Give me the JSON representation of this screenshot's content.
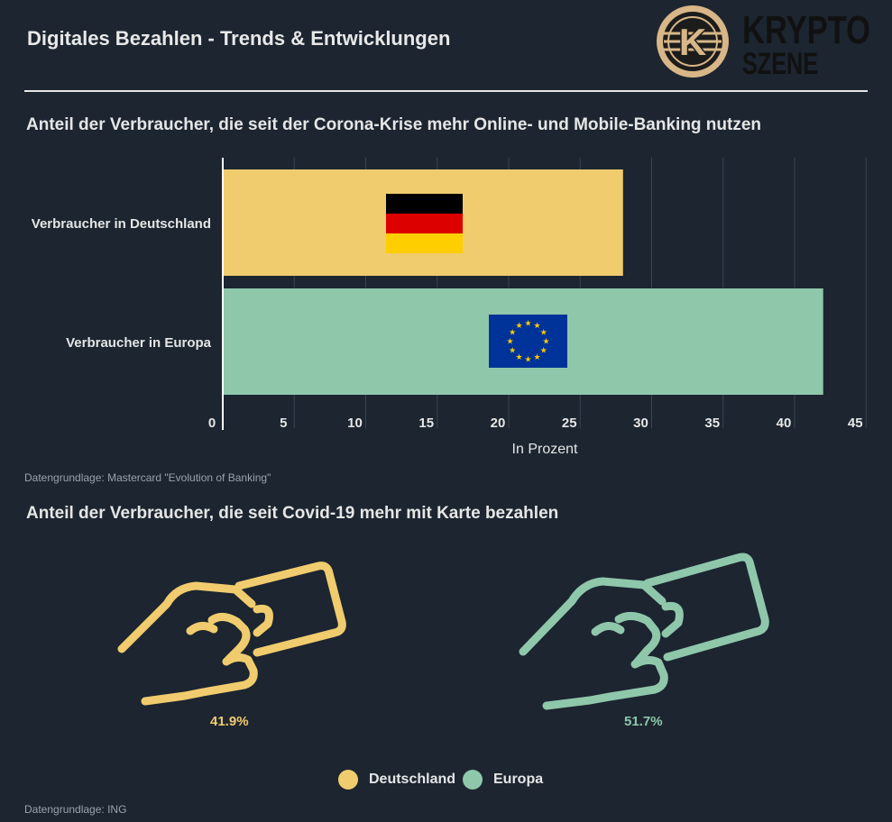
{
  "header": {
    "title": "Digitales Bezahlen - Trends & Entwicklungen",
    "logo_text_top": "KRYPTO",
    "logo_text_bottom": "SZENE",
    "logo_letter": "K"
  },
  "section1": {
    "subtitle": "Anteil der Verbraucher, die seit der Corona-Krise mehr Online- und Mobile-Banking nutzen",
    "source": "Datengrundlage: Mastercard \"Evolution of Banking\""
  },
  "section2": {
    "subtitle": "Anteil der Verbraucher, die seit Covid-19 mehr mit Karte bezahlen",
    "source": "Datengrundlage: ING",
    "items": [
      {
        "name": "Deutschland",
        "value_label": "41.9%",
        "value": 41.9,
        "color": "#f0cc6e"
      },
      {
        "name": "Europa",
        "value_label": "51.7%",
        "value": 51.7,
        "color": "#8fc7ab"
      }
    ]
  },
  "colors": {
    "background": "#1c2530",
    "deutschland": "#f0cc6e",
    "europa": "#8fc7ab",
    "grid": "#3a4550"
  },
  "chart_data": [
    {
      "type": "bar",
      "orientation": "horizontal",
      "title": "Anteil der Verbraucher, die seit der Corona-Krise mehr Online- und Mobile-Banking nutzen",
      "categories": [
        "Verbraucher in Deutschland",
        "Verbraucher in Europa"
      ],
      "values": [
        28,
        42
      ],
      "colors": [
        "#f0cc6e",
        "#8fc7ab"
      ],
      "bar_icons": [
        "flag-germany-icon",
        "flag-eu-icon"
      ],
      "xlabel": "In Prozent",
      "xlim": [
        0,
        45
      ],
      "xticks": [
        0,
        5,
        10,
        15,
        20,
        25,
        30,
        35,
        40,
        45
      ],
      "grid": "vertical"
    },
    {
      "type": "pictogram",
      "title": "Anteil der Verbraucher, die seit Covid-19 mehr mit Karte bezahlen",
      "categories": [
        "Deutschland",
        "Europa"
      ],
      "values": [
        41.9,
        51.7
      ],
      "value_labels": [
        "41.9%",
        "51.7%"
      ],
      "icon": "hand-holding-card-icon",
      "legend": "bottom-center"
    }
  ]
}
